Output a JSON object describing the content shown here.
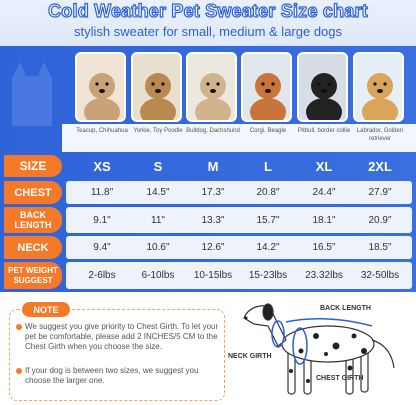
{
  "header": {
    "title": "Cold Weather Pet Sweater Size chart",
    "subtitle": "stylish sweater for small, medium & large dogs"
  },
  "dogs": [
    {
      "breed": "Teacup, Chihuahua"
    },
    {
      "breed": "Yorkie, Toy Poodle"
    },
    {
      "breed": "Bulldog, Dachshund"
    },
    {
      "breed": "Corgi, Beagle"
    },
    {
      "breed": "Pitbull, border collie"
    },
    {
      "breed": "Labrador, Golden retriever"
    }
  ],
  "table": {
    "columns": [
      "SIZE",
      "XS",
      "S",
      "M",
      "L",
      "XL",
      "2XL"
    ],
    "rows": [
      [
        "CHEST",
        "11.8\"",
        "14.5\"",
        "17.3\"",
        "20.8\"",
        "24.4\"",
        "27.9\""
      ],
      [
        "BACK LENGTH",
        "9.1\"",
        "11\"",
        "13.3\"",
        "15.7\"",
        "18.1\"",
        "20.9\""
      ],
      [
        "NECK",
        "9.4\"",
        "10.6\"",
        "12.6\"",
        "14.2\"",
        "16.5\"",
        "18.5\""
      ],
      [
        "PET WEIGHT SUGGEST",
        "2-6lbs",
        "6-10lbs",
        "10-15lbs",
        "15-23lbs",
        "23.32lbs",
        "32-50lbs"
      ]
    ]
  },
  "note": {
    "title": "NOTE",
    "items": [
      "We suggest you give priority to Chest Girth. To let your pet be comfortable, please add 2 INCHES/5 CM to the Chest Girth when you choose the size.",
      "If your dog is between two sizes, we suggest you choose the larger one."
    ]
  },
  "diagram": {
    "labels": [
      "BACK LENGTH",
      "NECK GIRTH",
      "CHEST GIRTH"
    ]
  }
}
